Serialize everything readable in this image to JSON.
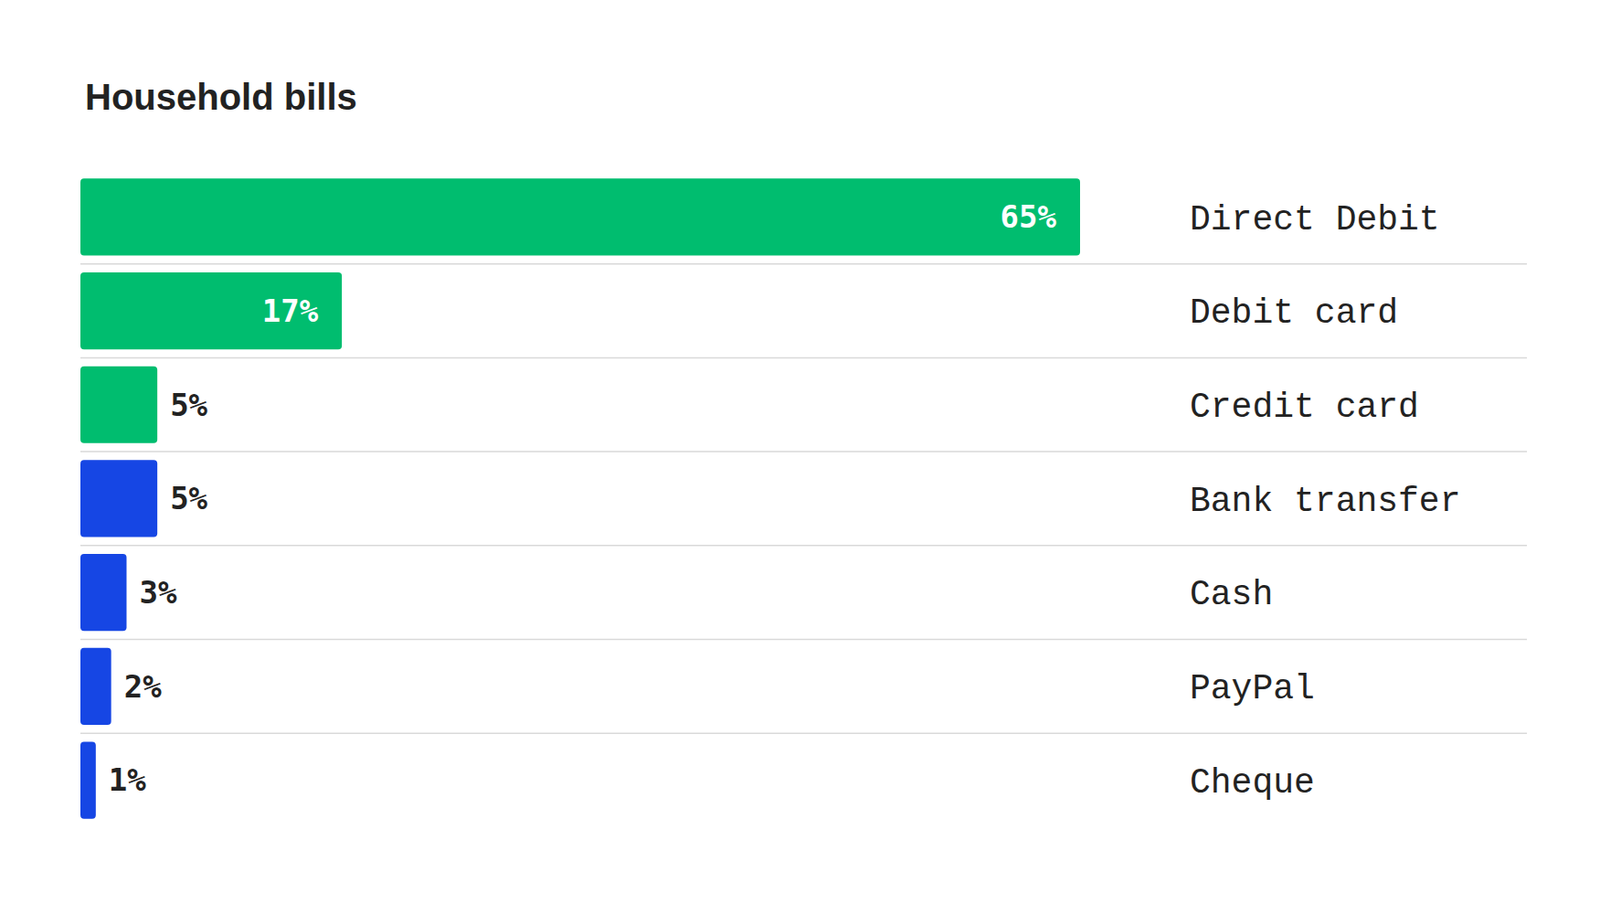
{
  "chart_data": {
    "type": "bar",
    "title": "Household bills",
    "orientation": "horizontal",
    "categories": [
      "Direct Debit",
      "Debit card",
      "Credit card",
      "Bank transfer",
      "Cash",
      "PayPal",
      "Cheque"
    ],
    "values": [
      65,
      17,
      5,
      5,
      3,
      2,
      1
    ],
    "value_labels": [
      "65%",
      "17%",
      "5%",
      "5%",
      "3%",
      "2%",
      "1%"
    ],
    "colors": [
      "#00bd6f",
      "#00bd6f",
      "#00bd6f",
      "#1646e4",
      "#1646e4",
      "#1646e4",
      "#1646e4"
    ],
    "data_labels": true,
    "tick_labels": false
  }
}
